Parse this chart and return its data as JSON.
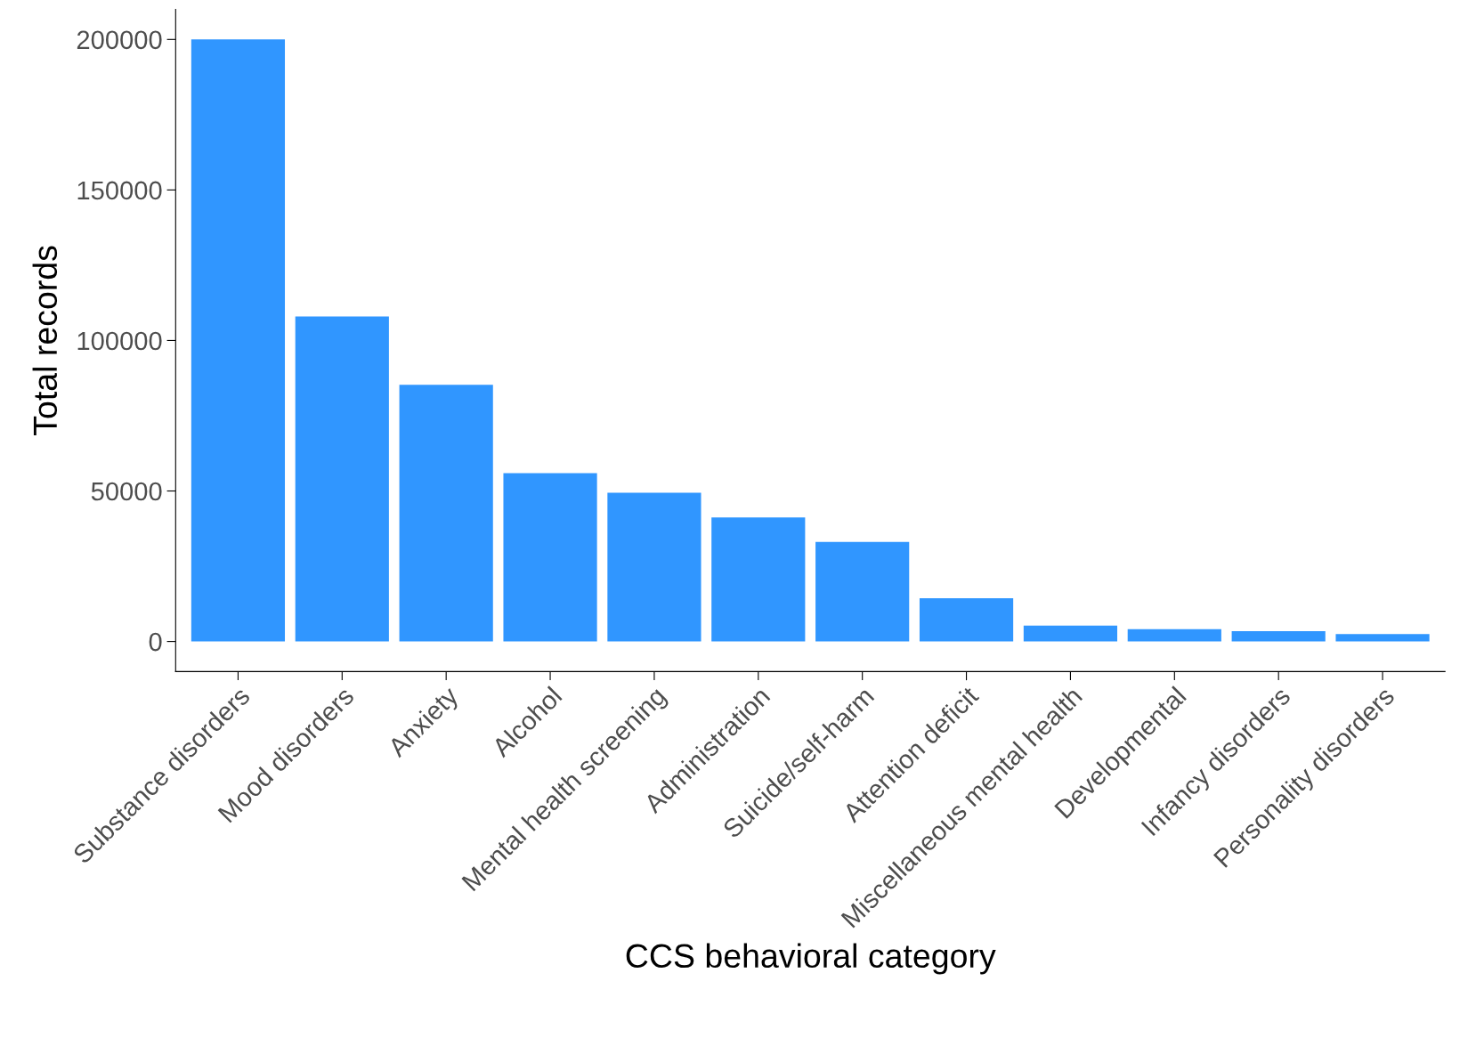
{
  "chart_data": {
    "type": "bar",
    "xlabel": "CCS behavioral category",
    "ylabel": "Total records",
    "categories": [
      "Substance disorders",
      "Mood disorders",
      "Anxiety",
      "Alcohol",
      "Mental health screening",
      "Administration",
      "Suicide/self-harm",
      "Attention deficit",
      "Miscellaneous mental health",
      "Developmental",
      "Infancy disorders",
      "Personality disorders"
    ],
    "values": [
      200000,
      108000,
      85300,
      55900,
      49400,
      41200,
      33100,
      14400,
      5300,
      4100,
      3400,
      2500
    ],
    "color": "#3096ff",
    "ylim": [
      -10000,
      210000
    ],
    "yticks": [
      0,
      50000,
      100000,
      150000,
      200000
    ],
    "grid": false
  }
}
